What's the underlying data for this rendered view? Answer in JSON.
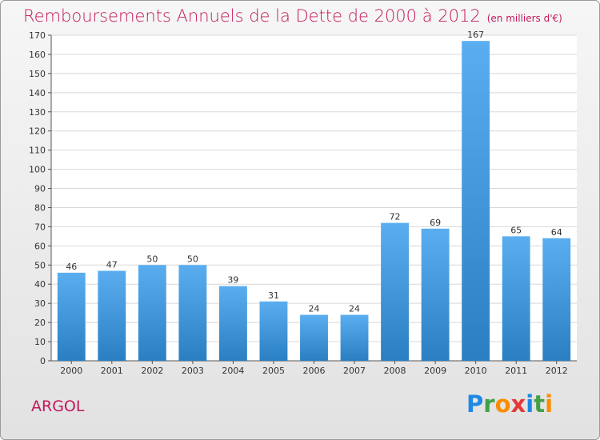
{
  "title": "Remboursements Annuels de la Dette de 2000 à 2012",
  "unit_note": "(en milliers d'€)",
  "place": "ARGOL",
  "brand": {
    "letters": [
      {
        "ch": "P",
        "color": "#1e88e5"
      },
      {
        "ch": "r",
        "color": "#43a047"
      },
      {
        "ch": "o",
        "color": "#fb8c00"
      },
      {
        "ch": "x",
        "color": "#e53935"
      },
      {
        "ch": "i",
        "color": "#1e88e5"
      },
      {
        "ch": "t",
        "color": "#43a047"
      },
      {
        "ch": "i",
        "color": "#fb8c00"
      }
    ]
  },
  "chart_data": {
    "type": "bar",
    "categories": [
      "2000",
      "2001",
      "2002",
      "2003",
      "2004",
      "2005",
      "2006",
      "2007",
      "2008",
      "2009",
      "2010",
      "2011",
      "2012"
    ],
    "values": [
      46,
      47,
      50,
      50,
      39,
      31,
      24,
      24,
      72,
      69,
      167,
      65,
      64
    ],
    "ylim": [
      0,
      170
    ],
    "yticks": [
      0,
      10,
      20,
      30,
      40,
      50,
      60,
      70,
      80,
      90,
      100,
      110,
      120,
      130,
      140,
      150,
      160,
      170
    ],
    "grid": true,
    "bar_color_top": "#5aaef0",
    "bar_color_bottom": "#2a7fc2"
  }
}
